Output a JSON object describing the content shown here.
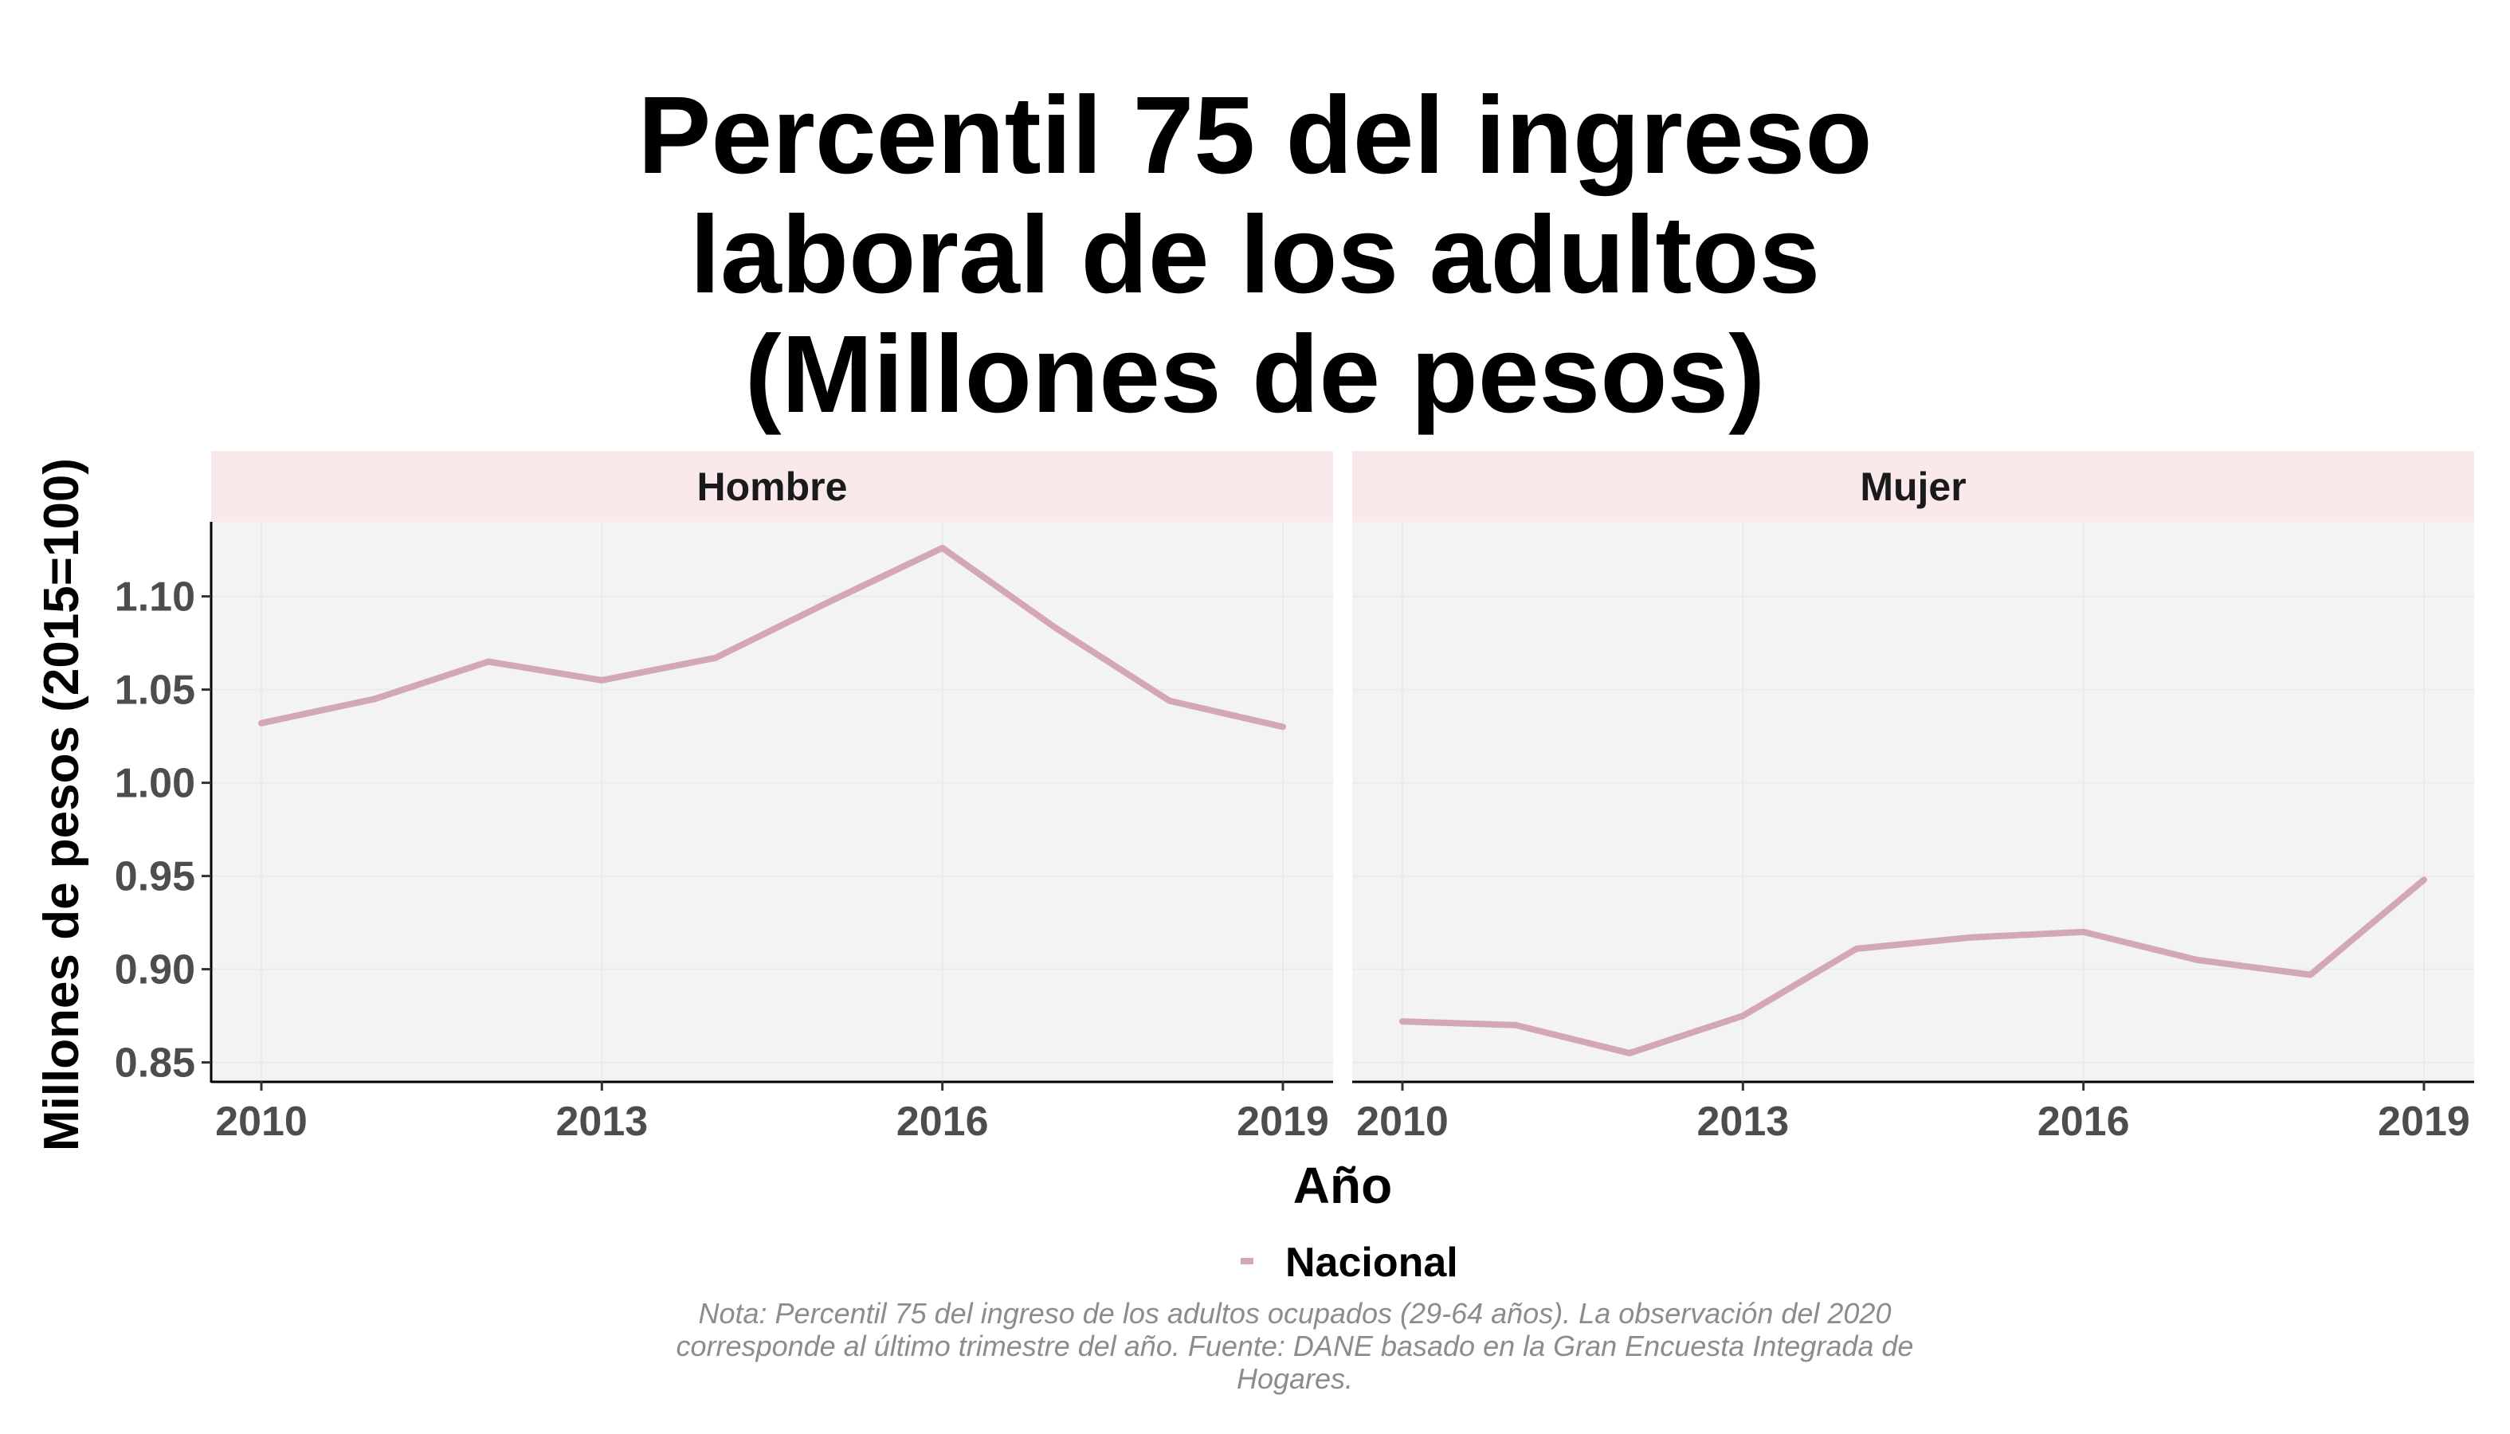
{
  "chart_data": {
    "type": "line",
    "title_lines": [
      "Percentil 75 del ingreso",
      "laboral de los adultos",
      "(Millones de pesos)"
    ],
    "xlabel": "Año",
    "ylabel": "Millones de pesos (2015=100)",
    "x": [
      2010,
      2011,
      2012,
      2013,
      2014,
      2015,
      2016,
      2017,
      2018,
      2019
    ],
    "x_ticks": [
      "2010",
      "2013",
      "2016",
      "2019"
    ],
    "ylim": [
      0.84,
      1.14
    ],
    "y_ticks": [
      "0.85",
      "0.90",
      "0.95",
      "1.00",
      "1.05",
      "1.10"
    ],
    "legend_position": "bottom",
    "grid": true,
    "colors": {
      "line": "#d4a8b3",
      "panel_bg": "#f3f3f3",
      "strip_bg": "#f9e9ea",
      "grid": "#eaeaea"
    },
    "panels": [
      {
        "strip": "Hombre",
        "series": [
          {
            "name": "Nacional",
            "values": [
              1.032,
              1.045,
              1.065,
              1.055,
              1.067,
              1.097,
              1.126,
              1.083,
              1.044,
              1.03
            ]
          }
        ]
      },
      {
        "strip": "Mujer",
        "series": [
          {
            "name": "Nacional",
            "values": [
              0.872,
              0.87,
              0.855,
              0.875,
              0.911,
              0.917,
              0.92,
              0.905,
              0.897,
              0.948
            ]
          }
        ]
      }
    ],
    "legend": [
      "Nacional"
    ]
  },
  "footnote": [
    "Nota: Percentil 75 del ingreso de los adultos ocupados (29-64 años). La observación del 2020",
    "corresponde al último trimestre del año. Fuente: DANE basado en la Gran Encuesta Integrada de",
    "Hogares."
  ]
}
